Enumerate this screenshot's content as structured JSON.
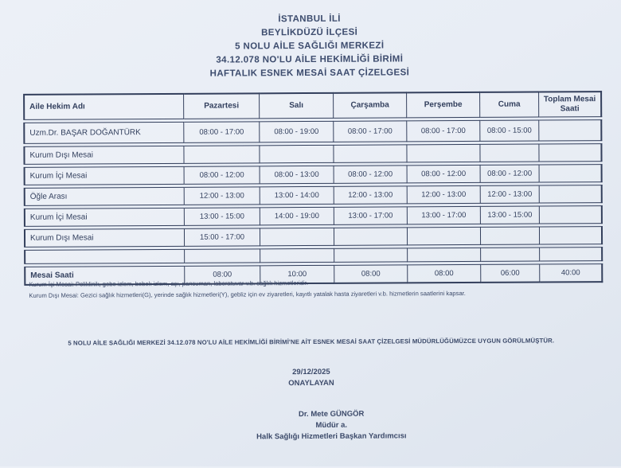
{
  "header": {
    "title_lines": [
      "İSTANBUL İLİ",
      "BEYLİKDÜZÜ İLÇESİ",
      "5 NOLU AİLE SAĞLIĞI MERKEZİ",
      "34.12.078 NO'LU AİLE HEKİMLİĞİ BİRİMİ",
      "HAFTALIK ESNEK MESAİ SAAT ÇİZELGESİ"
    ]
  },
  "table": {
    "headers": [
      "Aile Hekim Adı",
      "Pazartesi",
      "Salı",
      "Çarşamba",
      "Perşembe",
      "Cuma",
      "Toplam Mesai Saati"
    ],
    "rows": [
      {
        "label": "Uzm.Dr. BAŞAR DOĞANTÜRK",
        "cells": [
          "08:00 - 17:00",
          "08:00 - 19:00",
          "08:00 - 17:00",
          "08:00 - 17:00",
          "08:00 - 15:00",
          ""
        ]
      },
      {
        "label": "Kurum Dışı Mesai",
        "cells": [
          "",
          "",
          "",
          "",
          "",
          ""
        ]
      },
      {
        "label": "Kurum İçi Mesai",
        "cells": [
          "08:00 - 12:00",
          "08:00 - 13:00",
          "08:00 - 12:00",
          "08:00 - 12:00",
          "08:00 - 12:00",
          ""
        ]
      },
      {
        "label": "Öğle Arası",
        "cells": [
          "12:00 - 13:00",
          "13:00 - 14:00",
          "12:00 - 13:00",
          "12:00 - 13:00",
          "12:00 - 13:00",
          ""
        ]
      },
      {
        "label": "Kurum İçi Mesai",
        "cells": [
          "13:00 - 15:00",
          "14:00 - 19:00",
          "13:00 - 17:00",
          "13:00 - 17:00",
          "13:00 - 15:00",
          ""
        ]
      },
      {
        "label": "Kurum Dışı Mesai",
        "cells": [
          "15:00 - 17:00",
          "",
          "",
          "",
          "",
          ""
        ]
      },
      {
        "label": "",
        "cells": [
          "",
          "",
          "",
          "",
          "",
          ""
        ]
      },
      {
        "label": "Mesai Saati",
        "cells": [
          "08:00",
          "10:00",
          "08:00",
          "08:00",
          "06:00",
          "40:00"
        ]
      }
    ]
  },
  "footnotes": [
    "Kurum İçi Mesai: Poliklinik, gebe izlem, bebek izlem, aşı, pansuman, laboratuvar v.b. sağlık hizmetleridir.",
    "Kurum Dışı Mesai: Gezici sağlık hizmetleri(G), yerinde sağlık hizmetleri(Y), gebliz için ev ziyaretleri, kayıtlı yatalak hasta ziyaretleri v.b. hizmetlerin saatlerini kapsar."
  ],
  "approval": {
    "statement": "5 NOLU AİLE SAĞLIĞI MERKEZİ 34.12.078 NO'LU AİLE HEKİMLİĞİ BİRİMİ'NE AİT ESNEK MESAİ SAAT ÇİZELGESİ MÜDÜRLÜĞÜMÜZCE UYGUN GÖRÜLMÜŞTÜR.",
    "date": "29/12/2025",
    "label": "ONAYLAYAN",
    "signer_name": "Dr. Mete GÜNGÖR",
    "signer_title": "Müdür a.",
    "signer_role": "Halk Sağlığı Hizmetleri Başkan Yardımcısı"
  },
  "colors": {
    "ink": "#33405e",
    "border": "#333f5c",
    "paper": "#e8edf5"
  }
}
